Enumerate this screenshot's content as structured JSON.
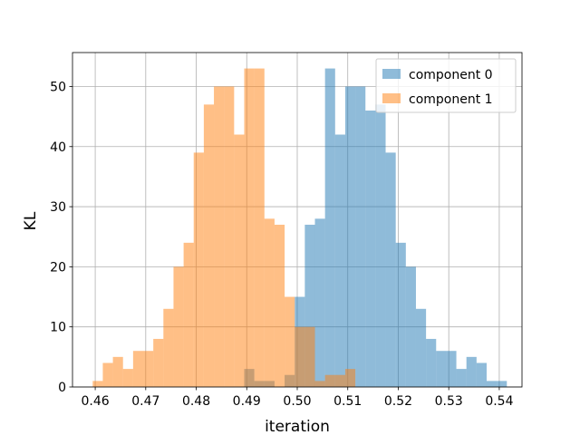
{
  "chart_data": {
    "type": "bar",
    "title": "",
    "xlabel": "iteration",
    "ylabel": "KL",
    "xlim": [
      0.4555,
      0.5445
    ],
    "ylim": [
      0,
      55.65
    ],
    "xticks": [
      0.46,
      0.47,
      0.48,
      0.49,
      0.5,
      0.51,
      0.52,
      0.53,
      0.54
    ],
    "xtick_labels": [
      "0.46",
      "0.47",
      "0.48",
      "0.49",
      "0.50",
      "0.51",
      "0.52",
      "0.53",
      "0.54"
    ],
    "yticks": [
      0,
      10,
      20,
      30,
      40,
      50
    ],
    "ytick_labels": [
      "0",
      "10",
      "20",
      "30",
      "40",
      "50"
    ],
    "grid": true,
    "legend_position": "top-right",
    "series": [
      {
        "name": "component 0",
        "color": "#1f77b4",
        "alpha": 0.5,
        "bins": [
          0.4895,
          0.4915,
          0.4935,
          0.4955,
          0.4975,
          0.4995,
          0.5015,
          0.5035,
          0.5055,
          0.5075,
          0.5095,
          0.5115,
          0.5135,
          0.5155,
          0.5175,
          0.5195,
          0.5215,
          0.5235,
          0.5255,
          0.5275,
          0.5295,
          0.5315,
          0.5335,
          0.5355,
          0.5375,
          0.5395,
          0.5415
        ],
        "values": [
          3,
          1,
          1,
          0,
          2,
          15,
          27,
          28,
          53,
          42,
          50,
          50,
          46,
          47,
          39,
          24,
          20,
          13,
          8,
          6,
          6,
          3,
          5,
          4,
          1,
          1
        ]
      },
      {
        "name": "component 1",
        "color": "#ff7f0e",
        "alpha": 0.5,
        "bins": [
          0.4595,
          0.4615,
          0.4635,
          0.4655,
          0.4675,
          0.4695,
          0.4715,
          0.4735,
          0.4755,
          0.4775,
          0.4795,
          0.4815,
          0.4835,
          0.4855,
          0.4875,
          0.4895,
          0.4915,
          0.4935,
          0.4955,
          0.4975,
          0.4995,
          0.5015,
          0.5035,
          0.5055,
          0.5075,
          0.5095,
          0.5115
        ],
        "values": [
          1,
          4,
          5,
          3,
          6,
          6,
          8,
          13,
          20,
          24,
          39,
          47,
          50,
          50,
          42,
          53,
          53,
          28,
          27,
          15,
          10,
          10,
          1,
          2,
          2,
          3
        ]
      }
    ]
  }
}
